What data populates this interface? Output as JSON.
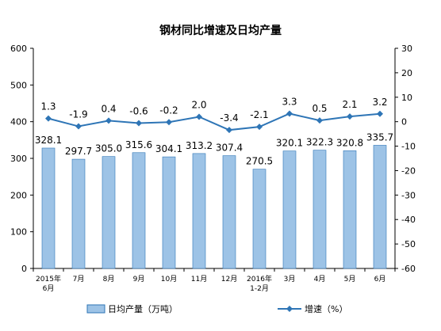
{
  "chart_data": {
    "type": "bar+line",
    "title": "钢材同比增速及日均产量",
    "categories": [
      "2015年\n6月",
      "7月",
      "8月",
      "9月",
      "10月",
      "11月",
      "12月",
      "2016年\n1-2月",
      "3月",
      "4月",
      "5月",
      "6月"
    ],
    "series": [
      {
        "name": "日均产量（万吨）",
        "type": "bar",
        "axis": "left",
        "values": [
          328.1,
          297.7,
          305.0,
          315.6,
          304.1,
          313.2,
          307.4,
          270.5,
          320.1,
          322.3,
          320.8,
          335.7
        ],
        "labels": [
          "328.1",
          "297.7",
          "305.0",
          "315.6",
          "304.1",
          "313.2",
          "307.4",
          "270.5",
          "320.1",
          "322.3",
          "320.8",
          "335.7"
        ]
      },
      {
        "name": "增速（%）",
        "type": "line",
        "axis": "right",
        "values": [
          1.3,
          -1.9,
          0.4,
          -0.6,
          -0.2,
          2.0,
          -3.4,
          -2.1,
          3.3,
          0.5,
          2.1,
          3.2
        ],
        "labels": [
          "1.3",
          "-1.9",
          "0.4",
          "-0.6",
          "-0.2",
          "2.0",
          "-3.4",
          "-2.1",
          "3.3",
          "0.5",
          "2.1",
          "3.2"
        ]
      }
    ],
    "y_left": {
      "min": 0,
      "max": 600,
      "step": 100,
      "ticks": [
        "0",
        "100",
        "200",
        "300",
        "400",
        "500",
        "600"
      ]
    },
    "y_right": {
      "min": -60,
      "max": 30,
      "step": 10,
      "ticks": [
        "-60",
        "-50",
        "-40",
        "-30",
        "-20",
        "-10",
        "0",
        "10",
        "20",
        "30"
      ]
    },
    "grid": false,
    "legend": "bottom",
    "colors": {
      "bar_fill": "#9DC3E6",
      "bar_stroke": "#2E75B6",
      "line": "#2E75B6",
      "axis": "#000000"
    }
  }
}
